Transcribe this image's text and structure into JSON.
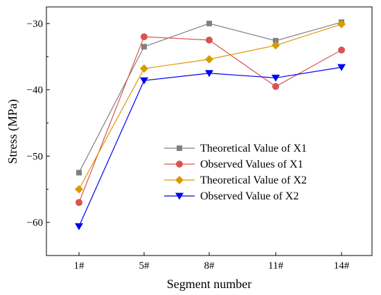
{
  "chart_data": {
    "type": "line",
    "categories": [
      "1#",
      "5#",
      "8#",
      "11#",
      "14#"
    ],
    "xlabel": "Segment number",
    "ylabel": "Stress (MPa)",
    "ylim": [
      -65,
      -27.5
    ],
    "yticks": [
      -60,
      -50,
      -40,
      -30
    ],
    "ytick_labels": [
      "−60",
      "−50",
      "−40",
      "−30"
    ],
    "grid": false,
    "legend_position": "center-right",
    "series": [
      {
        "name": "Theoretical Value of X1",
        "values": [
          -52.5,
          -33.5,
          -30.0,
          -32.6,
          -29.8
        ],
        "color": "#808080",
        "marker": "square"
      },
      {
        "name": "Observed Values of X1",
        "values": [
          -57.0,
          -32.0,
          -32.5,
          -39.5,
          -34.0
        ],
        "color": "#d9534f",
        "marker": "circle"
      },
      {
        "name": "Theoretical Value of X2",
        "values": [
          -55.0,
          -36.8,
          -35.4,
          -33.3,
          -30.1
        ],
        "color": "#d99a00",
        "marker": "diamond"
      },
      {
        "name": "Observed Value of X2",
        "values": [
          -60.6,
          -38.6,
          -37.5,
          -38.2,
          -36.6
        ],
        "color": "#0000ee",
        "marker": "triangle-down"
      }
    ]
  }
}
